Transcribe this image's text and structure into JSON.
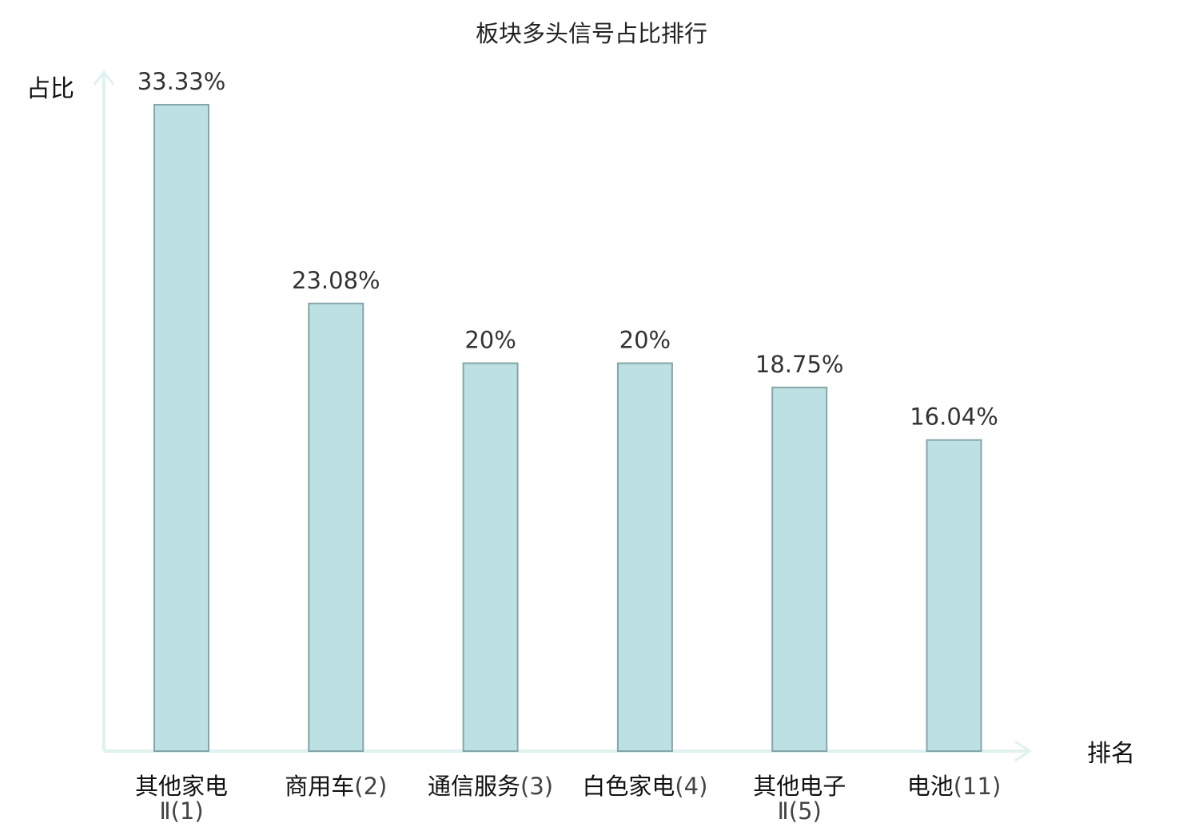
{
  "chart_data": {
    "type": "bar",
    "title": "板块多头信号占比排行",
    "xlabel": "排名",
    "ylabel": "占比",
    "categories": [
      {
        "name": "其他家电Ⅱ",
        "rank": "(1)"
      },
      {
        "name": "商用车",
        "rank": "(2)"
      },
      {
        "name": "通信服务",
        "rank": "(3)"
      },
      {
        "name": "白色家电",
        "rank": "(4)"
      },
      {
        "name": "其他电子Ⅱ",
        "rank": "(5)"
      },
      {
        "name": "电池",
        "rank": "(11)",
        "highlight": true
      }
    ],
    "values": [
      33.33,
      23.08,
      20,
      20,
      18.75,
      16.04
    ],
    "value_labels": [
      "33.33%",
      "23.08%",
      "20%",
      "20%",
      "18.75%",
      "16.04%"
    ],
    "unit": "%",
    "ylim": [
      0,
      33.33
    ],
    "grid": false,
    "colors": {
      "bar_fill": "#bde0e3",
      "bar_stroke": "#85a6a8",
      "axis": "#e0f1ef",
      "highlight_text": "#e02020",
      "text": "#111111"
    }
  }
}
